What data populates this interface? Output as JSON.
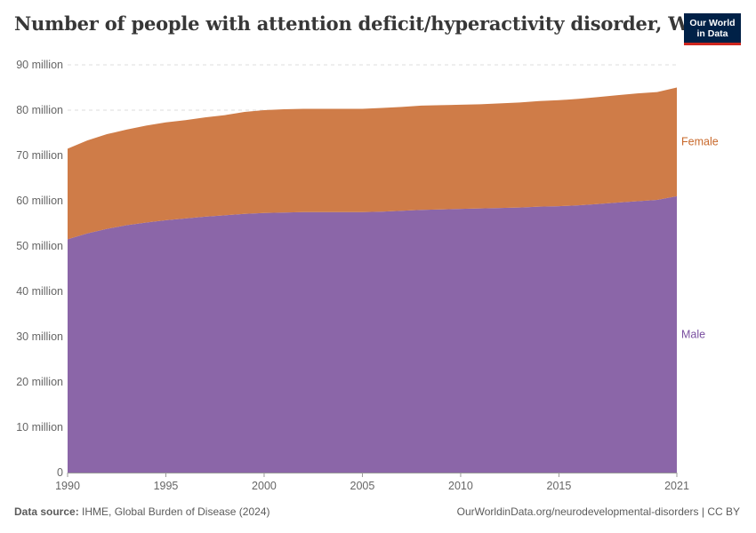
{
  "header": {
    "title": "Number of people with attention deficit/hyperactivity disorder, World",
    "logo_line1": "Our World",
    "logo_line2": "in Data"
  },
  "footer": {
    "source_label": "Data source:",
    "source_text": "IHME, Global Burden of Disease (2024)",
    "url_text": "OurWorldinData.org/neurodevelopmental-disorders | CC BY"
  },
  "colors": {
    "male": "#8b66a8",
    "female": "#cf7c48",
    "male_label": "#7a4fa0",
    "female_label": "#c8682a",
    "grid": "#dddddd",
    "axis_text": "#666666"
  },
  "chart_data": {
    "type": "area",
    "stacked": true,
    "title": "Number of people with attention deficit/hyperactivity disorder, World",
    "x": [
      1990,
      1991,
      1992,
      1993,
      1994,
      1995,
      1996,
      1997,
      1998,
      1999,
      2000,
      2001,
      2002,
      2003,
      2004,
      2005,
      2006,
      2007,
      2008,
      2009,
      2010,
      2011,
      2012,
      2013,
      2014,
      2015,
      2016,
      2017,
      2018,
      2019,
      2020,
      2021
    ],
    "series": [
      {
        "name": "Male",
        "values": [
          51.5,
          52.8,
          53.8,
          54.6,
          55.2,
          55.7,
          56.1,
          56.5,
          56.8,
          57.1,
          57.3,
          57.4,
          57.5,
          57.5,
          57.5,
          57.5,
          57.6,
          57.8,
          58.0,
          58.1,
          58.2,
          58.3,
          58.4,
          58.5,
          58.7,
          58.8,
          59.0,
          59.3,
          59.6,
          59.9,
          60.2,
          61.0
        ]
      },
      {
        "name": "Female",
        "values": [
          20.0,
          20.5,
          20.9,
          21.1,
          21.4,
          21.6,
          21.7,
          21.9,
          22.1,
          22.5,
          22.7,
          22.8,
          22.8,
          22.8,
          22.8,
          22.8,
          22.9,
          22.9,
          23.0,
          23.0,
          23.0,
          23.0,
          23.1,
          23.2,
          23.3,
          23.4,
          23.5,
          23.6,
          23.7,
          23.8,
          23.8,
          24.0
        ]
      }
    ],
    "ylim": [
      0,
      90
    ],
    "yticks": [
      0,
      10,
      20,
      30,
      40,
      50,
      60,
      70,
      80,
      90
    ],
    "ytick_labels": [
      "0",
      "10 million",
      "20 million",
      "30 million",
      "40 million",
      "50 million",
      "60 million",
      "70 million",
      "80 million",
      "90 million"
    ],
    "xticks": [
      1990,
      1995,
      2000,
      2005,
      2010,
      2015,
      2021
    ],
    "xtick_labels": [
      "1990",
      "1995",
      "2000",
      "2005",
      "2010",
      "2015",
      "2021"
    ],
    "grid": true,
    "legend": "right-inline"
  }
}
